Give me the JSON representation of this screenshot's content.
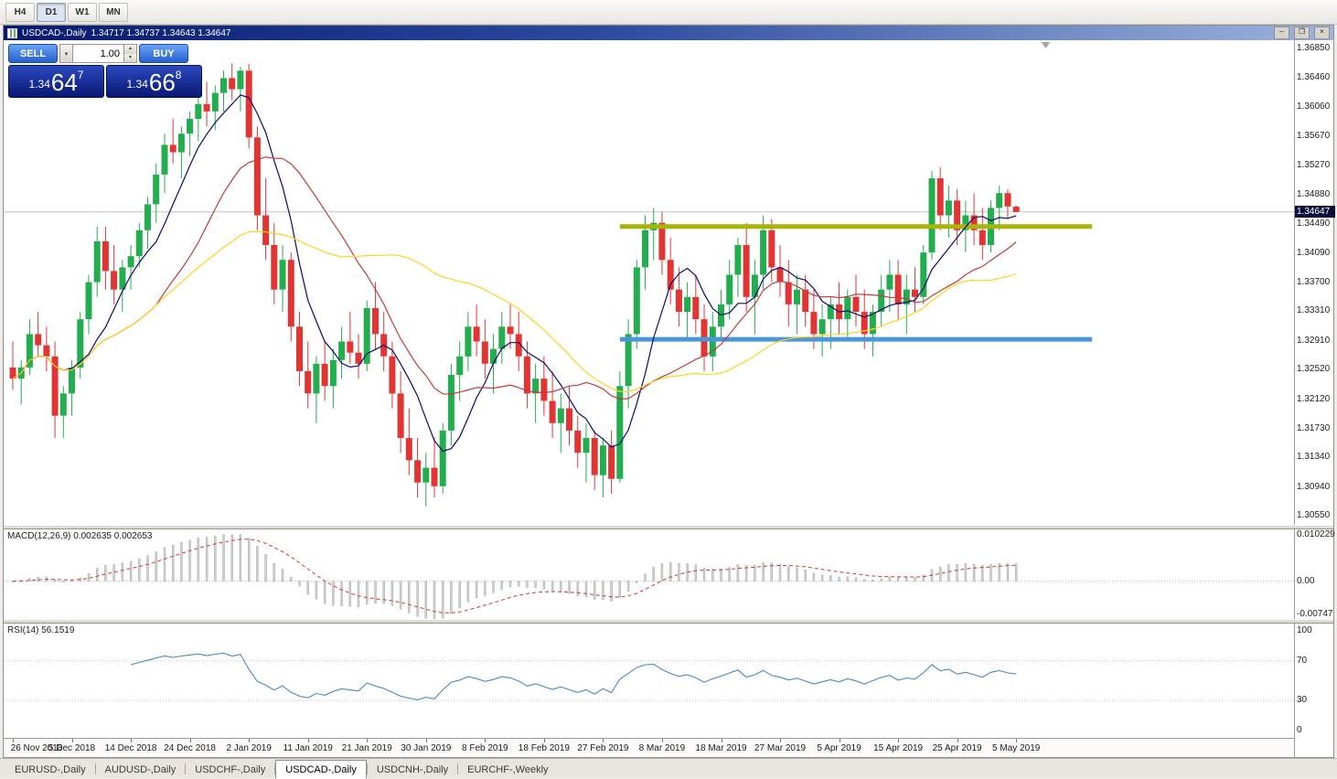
{
  "toolbar": {
    "timeframes": [
      {
        "label": "H4",
        "active": false
      },
      {
        "label": "D1",
        "active": true
      },
      {
        "label": "W1",
        "active": false
      },
      {
        "label": "MN",
        "active": false
      }
    ]
  },
  "chart_window": {
    "symbol": "USDCAD-,Daily",
    "ohlc": "1.34717 1.34737 1.34643 1.34647",
    "minimize_label": "–",
    "restore_label": "❐",
    "close_label": "×"
  },
  "one_click": {
    "sell_label": "SELL",
    "buy_label": "BUY",
    "volume": "1.00",
    "combo_arrow": "▾",
    "spin_up": "▴",
    "spin_down": "▾",
    "sell_price": {
      "main": "1.34",
      "big": "64",
      "pip": "7"
    },
    "buy_price": {
      "main": "1.34",
      "big": "66",
      "pip": "8"
    }
  },
  "indicators": {
    "macd": {
      "label": "MACD(12,26,9) 0.002635 0.002653",
      "scale": [
        "0.010229",
        "0.00",
        "-0.00747"
      ]
    },
    "rsi": {
      "label": "RSI(14) 56.1519",
      "scale": [
        "100",
        "70",
        "30",
        "0"
      ]
    }
  },
  "bid_tag": "1.34647",
  "tabs": [
    {
      "label": "EURUSD-,Daily",
      "active": false
    },
    {
      "label": "AUDUSD-,Daily",
      "active": false
    },
    {
      "label": "USDCHF-,Daily",
      "active": false
    },
    {
      "label": "USDCAD-,Daily",
      "active": true
    },
    {
      "label": "USDCNH-,Daily",
      "active": false
    },
    {
      "label": "EURCHF-,Weekly",
      "active": false
    }
  ],
  "chart_data": {
    "type": "candlestick",
    "symbol": "USDCAD-,Daily",
    "timeframe": "D1",
    "bid": 1.34647,
    "y_range": [
      1.3043,
      1.3696
    ],
    "price_gridlines": [
      "1.36850",
      "1.36460",
      "1.36060",
      "1.35670",
      "1.35270",
      "1.34880",
      "1.34490",
      "1.34090",
      "1.33700",
      "1.33310",
      "1.32910",
      "1.32520",
      "1.32120",
      "1.31730",
      "1.31340",
      "1.30940",
      "1.30550"
    ],
    "x_labels": [
      "26 Nov 2018",
      "5 Dec 2018",
      "14 Dec 2018",
      "24 Dec 2018",
      "2 Jan 2019",
      "11 Jan 2019",
      "21 Jan 2019",
      "30 Jan 2019",
      "8 Feb 2019",
      "18 Feb 2019",
      "27 Feb 2019",
      "8 Mar 2019",
      "18 Mar 2019",
      "27 Mar 2019",
      "5 Apr 2019",
      "15 Apr 2019",
      "25 Apr 2019",
      "5 May 2019"
    ],
    "label_step": 7,
    "colors": {
      "up": "#22ad4e",
      "down": "#e33434",
      "bid_line": "#c4c4c4",
      "bid_tag_bg": "#0d0d3a"
    },
    "overlays": [
      {
        "name": "ma-fast",
        "period": 7,
        "color": "#0b0b6b"
      },
      {
        "name": "ma-mid",
        "period": 18,
        "color": "#c23b3b"
      },
      {
        "name": "ma-slow",
        "period": 40,
        "color": "#ffd21e"
      }
    ],
    "hlines": [
      {
        "name": "resistance-line",
        "price": 1.3445,
        "color": "#a9b408",
        "width": 5,
        "from_index": 72,
        "to_index": 128
      },
      {
        "name": "support-line",
        "price": 1.3293,
        "color": "#4a96d9",
        "width": 5,
        "from_index": 72,
        "to_index": 128
      }
    ],
    "macd": {
      "fast": 12,
      "slow": 26,
      "signal_period": 9,
      "range": [
        -0.00747,
        0.010229
      ],
      "histogram_color": "#cfcfcf",
      "signal_color": "#cf3636"
    },
    "rsi": {
      "period": 14,
      "value": 56.1519,
      "range": [
        0,
        100
      ],
      "levels": [
        70,
        30
      ],
      "color": "#4a86c8"
    },
    "ohlc": [
      [
        1.3255,
        1.329,
        1.3225,
        1.324
      ],
      [
        1.324,
        1.3265,
        1.3205,
        1.3255
      ],
      [
        1.3255,
        1.332,
        1.3245,
        1.33
      ],
      [
        1.33,
        1.333,
        1.327,
        1.3285
      ],
      [
        1.3285,
        1.331,
        1.325,
        1.327
      ],
      [
        1.327,
        1.329,
        1.316,
        1.319
      ],
      [
        1.319,
        1.323,
        1.316,
        1.322
      ],
      [
        1.322,
        1.3265,
        1.319,
        1.3255
      ],
      [
        1.3255,
        1.333,
        1.324,
        1.332
      ],
      [
        1.332,
        1.338,
        1.33,
        1.337
      ],
      [
        1.337,
        1.3445,
        1.335,
        1.3425
      ],
      [
        1.3425,
        1.3445,
        1.336,
        1.3385
      ],
      [
        1.3385,
        1.342,
        1.334,
        1.336
      ],
      [
        1.336,
        1.34,
        1.333,
        1.339
      ],
      [
        1.339,
        1.342,
        1.336,
        1.3405
      ],
      [
        1.3405,
        1.345,
        1.339,
        1.344
      ],
      [
        1.344,
        1.3485,
        1.3415,
        1.3475
      ],
      [
        1.3475,
        1.353,
        1.345,
        1.3515
      ],
      [
        1.3515,
        1.357,
        1.349,
        1.3555
      ],
      [
        1.3555,
        1.359,
        1.353,
        1.3545
      ],
      [
        1.3545,
        1.358,
        1.351,
        1.357
      ],
      [
        1.357,
        1.36,
        1.354,
        1.359
      ],
      [
        1.359,
        1.3625,
        1.356,
        1.361
      ],
      [
        1.361,
        1.364,
        1.358,
        1.36
      ],
      [
        1.36,
        1.3635,
        1.3575,
        1.3625
      ],
      [
        1.3625,
        1.3655,
        1.36,
        1.3645
      ],
      [
        1.3645,
        1.3665,
        1.3615,
        1.363
      ],
      [
        1.363,
        1.366,
        1.36,
        1.3655
      ],
      [
        1.3655,
        1.3664,
        1.355,
        1.3565
      ],
      [
        1.3565,
        1.358,
        1.344,
        1.346
      ],
      [
        1.346,
        1.351,
        1.34,
        1.342
      ],
      [
        1.342,
        1.345,
        1.334,
        1.336
      ],
      [
        1.336,
        1.342,
        1.333,
        1.34
      ],
      [
        1.34,
        1.341,
        1.329,
        1.331
      ],
      [
        1.331,
        1.333,
        1.323,
        1.325
      ],
      [
        1.325,
        1.329,
        1.32,
        1.322
      ],
      [
        1.322,
        1.327,
        1.318,
        1.326
      ],
      [
        1.326,
        1.329,
        1.321,
        1.323
      ],
      [
        1.323,
        1.328,
        1.32,
        1.3265
      ],
      [
        1.3265,
        1.331,
        1.324,
        1.329
      ],
      [
        1.329,
        1.333,
        1.326,
        1.3275
      ],
      [
        1.3275,
        1.33,
        1.324,
        1.326
      ],
      [
        1.326,
        1.3345,
        1.325,
        1.3335
      ],
      [
        1.3335,
        1.337,
        1.328,
        1.33
      ],
      [
        1.33,
        1.333,
        1.325,
        1.327
      ],
      [
        1.327,
        1.329,
        1.32,
        1.322
      ],
      [
        1.322,
        1.325,
        1.314,
        1.316
      ],
      [
        1.316,
        1.32,
        1.311,
        1.313
      ],
      [
        1.313,
        1.316,
        1.308,
        1.31
      ],
      [
        1.31,
        1.314,
        1.3068,
        1.312
      ],
      [
        1.312,
        1.316,
        1.308,
        1.3095
      ],
      [
        1.3095,
        1.318,
        1.3085,
        1.317
      ],
      [
        1.317,
        1.326,
        1.315,
        1.3245
      ],
      [
        1.3245,
        1.329,
        1.321,
        1.327
      ],
      [
        1.327,
        1.333,
        1.325,
        1.331
      ],
      [
        1.331,
        1.334,
        1.327,
        1.329
      ],
      [
        1.329,
        1.332,
        1.324,
        1.326
      ],
      [
        1.326,
        1.33,
        1.322,
        1.328
      ],
      [
        1.328,
        1.333,
        1.326,
        1.331
      ],
      [
        1.331,
        1.334,
        1.328,
        1.33
      ],
      [
        1.33,
        1.333,
        1.325,
        1.327
      ],
      [
        1.327,
        1.329,
        1.32,
        1.322
      ],
      [
        1.322,
        1.326,
        1.318,
        1.324
      ],
      [
        1.324,
        1.327,
        1.319,
        1.321
      ],
      [
        1.321,
        1.325,
        1.316,
        1.318
      ],
      [
        1.318,
        1.322,
        1.314,
        1.32
      ],
      [
        1.32,
        1.323,
        1.315,
        1.317
      ],
      [
        1.317,
        1.319,
        1.312,
        1.314
      ],
      [
        1.314,
        1.318,
        1.31,
        1.316
      ],
      [
        1.316,
        1.317,
        1.309,
        1.311
      ],
      [
        1.311,
        1.316,
        1.308,
        1.315
      ],
      [
        1.315,
        1.317,
        1.3085,
        1.3105
      ],
      [
        1.3105,
        1.325,
        1.31,
        1.323
      ],
      [
        1.323,
        1.332,
        1.32,
        1.33
      ],
      [
        1.33,
        1.34,
        1.328,
        1.339
      ],
      [
        1.339,
        1.346,
        1.336,
        1.344
      ],
      [
        1.344,
        1.347,
        1.34,
        1.345
      ],
      [
        1.345,
        1.3465,
        1.338,
        1.34
      ],
      [
        1.34,
        1.343,
        1.334,
        1.336
      ],
      [
        1.336,
        1.339,
        1.331,
        1.333
      ],
      [
        1.333,
        1.337,
        1.329,
        1.335
      ],
      [
        1.335,
        1.338,
        1.33,
        1.332
      ],
      [
        1.332,
        1.334,
        1.325,
        1.327
      ],
      [
        1.327,
        1.333,
        1.325,
        1.331
      ],
      [
        1.331,
        1.336,
        1.329,
        1.334
      ],
      [
        1.334,
        1.34,
        1.332,
        1.338
      ],
      [
        1.338,
        1.343,
        1.335,
        1.342
      ],
      [
        1.342,
        1.345,
        1.333,
        1.335
      ],
      [
        1.335,
        1.34,
        1.33,
        1.338
      ],
      [
        1.338,
        1.346,
        1.336,
        1.344
      ],
      [
        1.344,
        1.3455,
        1.337,
        1.339
      ],
      [
        1.339,
        1.342,
        1.335,
        1.337
      ],
      [
        1.337,
        1.34,
        1.331,
        1.334
      ],
      [
        1.334,
        1.338,
        1.33,
        1.336
      ],
      [
        1.336,
        1.338,
        1.331,
        1.333
      ],
      [
        1.333,
        1.336,
        1.328,
        1.33
      ],
      [
        1.33,
        1.334,
        1.327,
        1.332
      ],
      [
        1.332,
        1.335,
        1.328,
        1.334
      ],
      [
        1.334,
        1.337,
        1.33,
        1.332
      ],
      [
        1.332,
        1.336,
        1.329,
        1.335
      ],
      [
        1.335,
        1.338,
        1.331,
        1.333
      ],
      [
        1.333,
        1.336,
        1.328,
        1.33
      ],
      [
        1.33,
        1.334,
        1.327,
        1.333
      ],
      [
        1.333,
        1.338,
        1.331,
        1.336
      ],
      [
        1.336,
        1.34,
        1.333,
        1.338
      ],
      [
        1.338,
        1.34,
        1.332,
        1.334
      ],
      [
        1.334,
        1.338,
        1.33,
        1.336
      ],
      [
        1.336,
        1.339,
        1.333,
        1.335
      ],
      [
        1.335,
        1.342,
        1.334,
        1.341
      ],
      [
        1.341,
        1.352,
        1.34,
        1.351
      ],
      [
        1.351,
        1.3525,
        1.344,
        1.346
      ],
      [
        1.346,
        1.35,
        1.343,
        1.348
      ],
      [
        1.348,
        1.3495,
        1.342,
        1.344
      ],
      [
        1.344,
        1.348,
        1.341,
        1.346
      ],
      [
        1.346,
        1.349,
        1.342,
        1.344
      ],
      [
        1.344,
        1.347,
        1.34,
        1.342
      ],
      [
        1.342,
        1.348,
        1.341,
        1.347
      ],
      [
        1.347,
        1.35,
        1.344,
        1.349
      ],
      [
        1.349,
        1.3495,
        1.3455,
        1.3472
      ],
      [
        1.34717,
        1.34737,
        1.34643,
        1.34647
      ]
    ]
  }
}
